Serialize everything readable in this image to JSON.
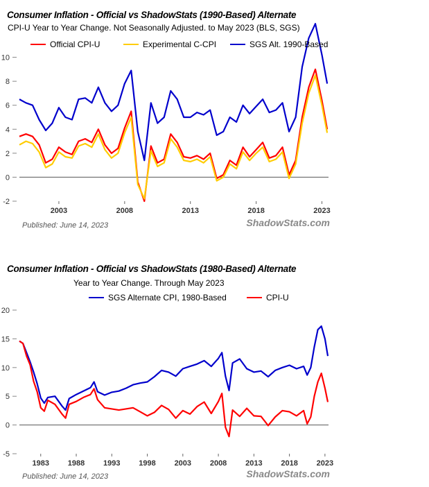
{
  "chart_data": [
    {
      "type": "line",
      "title": "Consumer Inflation - Official vs ShadowStats (1990-Based) Alternate",
      "subtitle": "CPI-U Year to Year Change. Not Seasonally Adjusted. to May 2023  (BLS, SGS)",
      "published": "Published: June 14, 2023",
      "brand": "ShadowStats.com",
      "ylim": [
        -2,
        12
      ],
      "xlim": [
        2000.0,
        2023.5
      ],
      "yticks": [
        "-2",
        "0",
        "2",
        "4",
        "6",
        "8",
        "10"
      ],
      "xticks": [
        "2003",
        "2008",
        "2013",
        "2018",
        "2023"
      ],
      "series": [
        {
          "name": "Official CPI-U",
          "color": "#ff0000",
          "x": [
            2000.0,
            2000.5,
            2001.0,
            2001.5,
            2002.0,
            2002.5,
            2003.0,
            2003.5,
            2004.0,
            2004.5,
            2005.0,
            2005.5,
            2006.0,
            2006.5,
            2007.0,
            2007.5,
            2008.0,
            2008.5,
            2009.0,
            2009.5,
            2010.0,
            2010.5,
            2011.0,
            2011.5,
            2012.0,
            2012.5,
            2013.0,
            2013.5,
            2014.0,
            2014.5,
            2015.0,
            2015.5,
            2016.0,
            2016.5,
            2017.0,
            2017.5,
            2018.0,
            2018.5,
            2019.0,
            2019.5,
            2020.0,
            2020.5,
            2021.0,
            2021.5,
            2022.0,
            2022.5,
            2023.0,
            2023.4
          ],
          "values": [
            3.4,
            3.6,
            3.4,
            2.7,
            1.2,
            1.5,
            2.5,
            2.1,
            1.9,
            3.0,
            3.2,
            2.9,
            4.0,
            2.7,
            2.0,
            2.4,
            4.1,
            5.5,
            -0.4,
            -2.0,
            2.6,
            1.2,
            1.5,
            3.6,
            2.9,
            1.7,
            1.6,
            1.8,
            1.5,
            2.0,
            -0.1,
            0.2,
            1.4,
            1.0,
            2.5,
            1.7,
            2.3,
            2.9,
            1.6,
            1.8,
            2.5,
            0.2,
            1.4,
            5.0,
            7.5,
            9.0,
            6.4,
            4.0
          ]
        },
        {
          "name": "Experimental C-CPI",
          "color": "#ffcc00",
          "x": [
            2000.0,
            2000.5,
            2001.0,
            2001.5,
            2002.0,
            2002.5,
            2003.0,
            2003.5,
            2004.0,
            2004.5,
            2005.0,
            2005.5,
            2006.0,
            2006.5,
            2007.0,
            2007.5,
            2008.0,
            2008.5,
            2009.0,
            2009.5,
            2010.0,
            2010.5,
            2011.0,
            2011.5,
            2012.0,
            2012.5,
            2013.0,
            2013.5,
            2014.0,
            2014.5,
            2015.0,
            2015.5,
            2016.0,
            2016.5,
            2017.0,
            2017.5,
            2018.0,
            2018.5,
            2019.0,
            2019.5,
            2020.0,
            2020.5,
            2021.0,
            2021.5,
            2022.0,
            2022.5,
            2023.0,
            2023.4
          ],
          "values": [
            2.7,
            3.0,
            2.8,
            2.1,
            0.8,
            1.1,
            2.1,
            1.7,
            1.6,
            2.6,
            2.8,
            2.5,
            3.6,
            2.3,
            1.6,
            2.0,
            3.7,
            5.0,
            -0.6,
            -1.8,
            2.2,
            0.9,
            1.2,
            3.2,
            2.5,
            1.4,
            1.3,
            1.5,
            1.2,
            1.7,
            -0.3,
            0.0,
            1.1,
            0.7,
            2.1,
            1.4,
            2.0,
            2.5,
            1.3,
            1.5,
            2.1,
            -0.1,
            1.1,
            4.5,
            7.0,
            8.5,
            6.0,
            3.7
          ]
        },
        {
          "name": "SGS  Alt. 1990-Based",
          "color": "#0000cc",
          "x": [
            2000.0,
            2000.5,
            2001.0,
            2001.5,
            2002.0,
            2002.5,
            2003.0,
            2003.5,
            2004.0,
            2004.5,
            2005.0,
            2005.5,
            2006.0,
            2006.5,
            2007.0,
            2007.5,
            2008.0,
            2008.5,
            2009.0,
            2009.5,
            2010.0,
            2010.5,
            2011.0,
            2011.5,
            2012.0,
            2012.5,
            2013.0,
            2013.5,
            2014.0,
            2014.5,
            2015.0,
            2015.5,
            2016.0,
            2016.5,
            2017.0,
            2017.5,
            2018.0,
            2018.5,
            2019.0,
            2019.5,
            2020.0,
            2020.5,
            2021.0,
            2021.5,
            2022.0,
            2022.5,
            2023.0,
            2023.4
          ],
          "values": [
            6.5,
            6.2,
            6.0,
            4.8,
            3.9,
            4.5,
            5.8,
            5.0,
            4.8,
            6.5,
            6.6,
            6.2,
            7.5,
            6.2,
            5.5,
            6.0,
            7.8,
            8.9,
            3.8,
            1.4,
            6.2,
            4.5,
            5.0,
            7.2,
            6.5,
            5.0,
            5.0,
            5.4,
            5.2,
            5.6,
            3.5,
            3.8,
            5.0,
            4.6,
            6.0,
            5.3,
            5.9,
            6.5,
            5.4,
            5.6,
            6.2,
            3.8,
            5.0,
            9.2,
            11.6,
            12.8,
            10.2,
            7.8
          ]
        }
      ]
    },
    {
      "type": "line",
      "title": "Consumer Inflation - Official vs ShadowStats (1980-Based) Alternate",
      "subtitle": "Year to Year Change. Through May 2023",
      "published": "Published: June 14, 2023",
      "brand": "ShadowStats.com",
      "ylim": [
        -5,
        20
      ],
      "xlim": [
        1980.0,
        2023.5
      ],
      "yticks": [
        "-5",
        "0",
        "5",
        "10",
        "15",
        "20"
      ],
      "xticks": [
        "1983",
        "1988",
        "1993",
        "1998",
        "2003",
        "2008",
        "2013",
        "2018",
        "2023"
      ],
      "series": [
        {
          "name": "SGS Alternate CPI, 1980-Based",
          "color": "#0000cc",
          "x": [
            1980.0,
            1980.5,
            1981.0,
            1981.5,
            1982.0,
            1982.5,
            1983.0,
            1983.5,
            1984.0,
            1985.0,
            1986.0,
            1986.5,
            1987.0,
            1988.0,
            1989.0,
            1990.0,
            1990.5,
            1991.0,
            1992.0,
            1993.0,
            1994.0,
            1995.0,
            1996.0,
            1997.0,
            1998.0,
            1999.0,
            2000.0,
            2001.0,
            2002.0,
            2003.0,
            2004.0,
            2005.0,
            2006.0,
            2007.0,
            2008.0,
            2008.5,
            2009.0,
            2009.5,
            2010.0,
            2011.0,
            2012.0,
            2013.0,
            2014.0,
            2015.0,
            2016.0,
            2017.0,
            2018.0,
            2019.0,
            2020.0,
            2020.5,
            2021.0,
            2021.5,
            2022.0,
            2022.5,
            2023.0,
            2023.4
          ],
          "values": [
            14.6,
            14.2,
            12.6,
            11.0,
            9.2,
            7.2,
            4.7,
            3.8,
            4.8,
            5.0,
            3.3,
            2.6,
            4.6,
            5.3,
            5.9,
            6.5,
            7.5,
            5.8,
            5.2,
            5.7,
            5.9,
            6.4,
            7.0,
            7.3,
            7.5,
            8.4,
            9.5,
            9.2,
            8.5,
            9.8,
            10.2,
            10.6,
            11.2,
            10.2,
            11.6,
            12.6,
            8.5,
            6.0,
            10.8,
            11.5,
            9.8,
            9.2,
            9.4,
            8.4,
            9.5,
            10.0,
            10.4,
            9.8,
            10.2,
            8.7,
            10.0,
            13.6,
            16.6,
            17.2,
            15.0,
            12.0
          ]
        },
        {
          "name": "CPI-U",
          "color": "#ff0000",
          "x": [
            1980.0,
            1980.5,
            1981.0,
            1981.5,
            1982.0,
            1982.5,
            1983.0,
            1983.5,
            1984.0,
            1985.0,
            1986.0,
            1986.5,
            1987.0,
            1988.0,
            1989.0,
            1990.0,
            1990.5,
            1991.0,
            1992.0,
            1993.0,
            1994.0,
            1995.0,
            1996.0,
            1997.0,
            1998.0,
            1999.0,
            2000.0,
            2001.0,
            2002.0,
            2003.0,
            2004.0,
            2005.0,
            2006.0,
            2007.0,
            2008.0,
            2008.5,
            2009.0,
            2009.5,
            2010.0,
            2011.0,
            2012.0,
            2013.0,
            2014.0,
            2015.0,
            2016.0,
            2017.0,
            2018.0,
            2019.0,
            2020.0,
            2020.5,
            2021.0,
            2021.5,
            2022.0,
            2022.5,
            2023.0,
            2023.4
          ],
          "values": [
            14.6,
            14.2,
            12.0,
            10.5,
            7.6,
            5.8,
            3.0,
            2.4,
            4.3,
            3.6,
            1.9,
            1.2,
            3.6,
            4.1,
            4.8,
            5.3,
            6.3,
            4.4,
            3.0,
            2.8,
            2.6,
            2.8,
            3.0,
            2.3,
            1.6,
            2.2,
            3.4,
            2.7,
            1.2,
            2.5,
            1.9,
            3.2,
            4.0,
            2.0,
            4.1,
            5.5,
            -0.4,
            -2.0,
            2.6,
            1.5,
            2.9,
            1.6,
            1.5,
            -0.1,
            1.4,
            2.5,
            2.3,
            1.6,
            2.5,
            0.2,
            1.4,
            5.0,
            7.5,
            9.0,
            6.4,
            4.0
          ]
        }
      ]
    }
  ]
}
